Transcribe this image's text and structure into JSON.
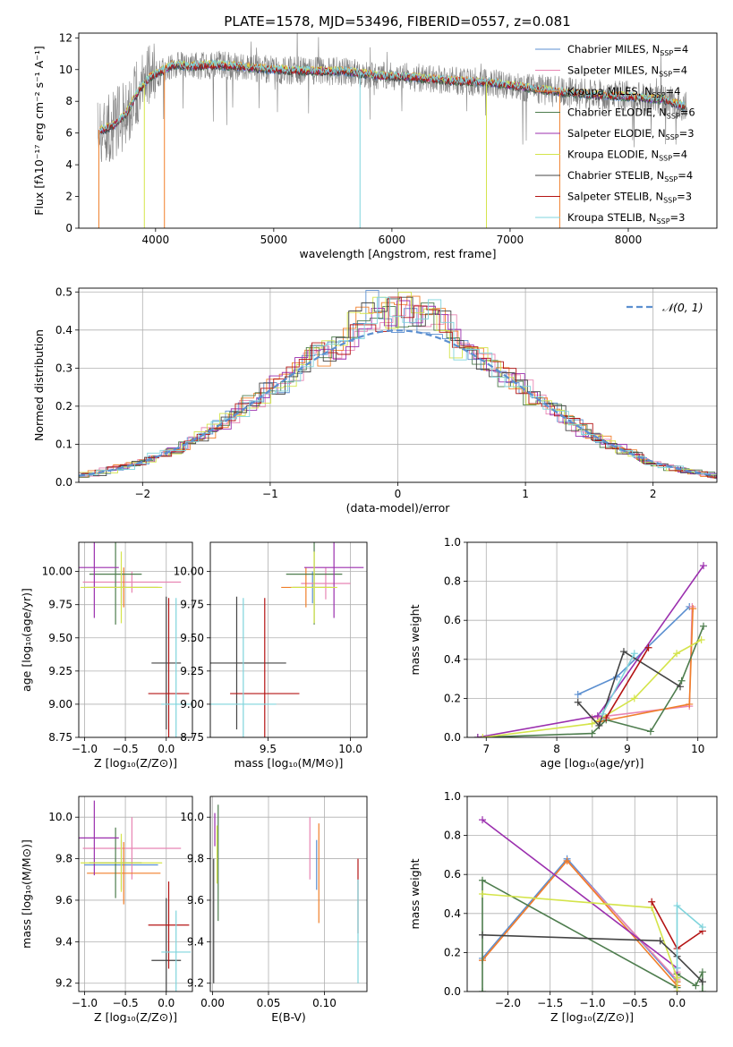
{
  "title": "PLATE=1578, MJD=53496, FIBERID=0557, z=0.081",
  "colors": {
    "Chabrier MILES": "#5b8fd0",
    "Salpeter MILES": "#e885b3",
    "Kroupa MILES": "#f07f2a",
    "Chabrier ELODIE": "#4e7d4e",
    "Salpeter ELODIE": "#9b2fae",
    "Kroupa ELODIE": "#d4e44a",
    "Chabrier STELIB": "#444444",
    "Salpeter STELIB": "#b41414",
    "Kroupa STELIB": "#7fd4dc",
    "data": "#808080"
  },
  "chart_data": [
    {
      "id": "spectrum",
      "type": "line",
      "xlabel": "wavelength [Angstrom, rest frame]",
      "ylabel": "Flux [fλ10⁻¹⁷ erg cm⁻² s⁻¹ A⁻¹]",
      "xlim": [
        3350,
        8750
      ],
      "ylim": [
        0,
        12.3
      ],
      "xticks": [
        "4000",
        "5000",
        "6000",
        "7000",
        "8000"
      ],
      "yticks": [
        "0",
        "2",
        "4",
        "6",
        "8",
        "10",
        "12"
      ],
      "grid": false,
      "legend_position": "top-right",
      "legend": [
        {
          "name": "Chabrier MILES",
          "nssp": "4"
        },
        {
          "name": "Salpeter MILES",
          "nssp": "4"
        },
        {
          "name": "Kroupa MILES",
          "nssp": "4"
        },
        {
          "name": "Chabrier ELODIE",
          "nssp": "6"
        },
        {
          "name": "Salpeter ELODIE",
          "nssp": "3"
        },
        {
          "name": "Kroupa ELODIE",
          "nssp": "4"
        },
        {
          "name": "Chabrier STELIB",
          "nssp": "4"
        },
        {
          "name": "Salpeter STELIB",
          "nssp": "3"
        },
        {
          "name": "Kroupa STELIB",
          "nssp": "3"
        }
      ],
      "continuum_x": [
        3550,
        3650,
        3750,
        3850,
        3950,
        4050,
        4150,
        4300,
        4500,
        4700,
        5000,
        5300,
        5600,
        5900,
        6200,
        6500,
        6800,
        7100,
        7400,
        7700,
        8000,
        8300,
        8500
      ],
      "continuum_y": [
        6.2,
        6.5,
        7.2,
        8.6,
        9.5,
        9.9,
        10.3,
        10.2,
        10.3,
        10.2,
        10.0,
        9.9,
        9.9,
        9.6,
        9.5,
        9.3,
        9.2,
        8.9,
        8.6,
        8.4,
        8.3,
        8.1,
        7.6
      ]
    },
    {
      "id": "residuals",
      "type": "line",
      "xlabel": "(data-model)/error",
      "ylabel": "Normed distribution",
      "xlim": [
        -2.5,
        2.5
      ],
      "ylim": [
        0,
        0.51
      ],
      "xticks": [
        "−2",
        "−1",
        "0",
        "1",
        "2"
      ],
      "yticks": [
        "0.0",
        "0.1",
        "0.2",
        "0.3",
        "0.4",
        "0.5"
      ],
      "grid": true,
      "legend_position": "top-right",
      "legend": [
        {
          "name": "𝒩(0, 1)"
        }
      ]
    },
    {
      "id": "age_vs_Z",
      "type": "scatter",
      "xlabel": "Z [log₁₀(Z/Z⊙)]",
      "ylabel": "age  [log₁₀(age/yr)]",
      "xlim": [
        -1.07,
        0.32
      ],
      "ylim": [
        8.75,
        10.22
      ],
      "xticks": [
        "−1.0",
        "−0.5",
        "0.0"
      ],
      "yticks": [
        "8.75",
        "9.00",
        "9.25",
        "9.50",
        "9.75",
        "10.00"
      ],
      "grid": true,
      "points": [
        {
          "series": "Chabrier MILES",
          "x": -0.55,
          "xerr": 0.45,
          "y": 9.88,
          "yerr": 0.12
        },
        {
          "series": "Salpeter MILES",
          "x": -0.42,
          "xerr": 0.6,
          "y": 9.92,
          "yerr": 0.08
        },
        {
          "series": "Kroupa MILES",
          "x": -0.52,
          "xerr": 0.45,
          "y": 9.88,
          "yerr": 0.15
        },
        {
          "series": "Chabrier ELODIE",
          "x": -0.62,
          "xerr": 0.32,
          "y": 9.98,
          "yerr": 0.38
        },
        {
          "series": "Salpeter ELODIE",
          "x": -0.88,
          "xerr": 0.3,
          "y": 10.03,
          "yerr": 0.38
        },
        {
          "series": "Kroupa ELODIE",
          "x": -0.55,
          "xerr": 0.5,
          "y": 9.88,
          "yerr": 0.27
        },
        {
          "series": "Chabrier STELIB",
          "x": 0.0,
          "xerr": 0.18,
          "y": 9.31,
          "yerr": 0.5
        },
        {
          "series": "Salpeter STELIB",
          "x": 0.03,
          "xerr": 0.25,
          "y": 9.08,
          "yerr": 0.72
        },
        {
          "series": "Kroupa STELIB",
          "x": 0.12,
          "xerr": 0.18,
          "y": 9.0,
          "yerr": 0.8
        }
      ]
    },
    {
      "id": "age_vs_mass",
      "type": "scatter",
      "xlabel": "mass [log₁₀(M/M⊙)]",
      "ylabel": "",
      "xlim": [
        9.15,
        10.1
      ],
      "ylim": [
        8.75,
        10.22
      ],
      "xticks": [
        "9.5",
        "10.0"
      ],
      "yticks": [
        "8.75",
        "9.00",
        "9.25",
        "9.50",
        "9.75",
        "10.00"
      ],
      "grid": true,
      "points": [
        {
          "series": "Chabrier MILES",
          "x": 9.77,
          "xerr": 0.12,
          "y": 9.88,
          "yerr": 0.12
        },
        {
          "series": "Salpeter MILES",
          "x": 9.85,
          "xerr": 0.15,
          "y": 9.91,
          "yerr": 0.12
        },
        {
          "series": "Kroupa MILES",
          "x": 9.73,
          "xerr": 0.15,
          "y": 9.88,
          "yerr": 0.15
        },
        {
          "series": "Chabrier ELODIE",
          "x": 9.78,
          "xerr": 0.17,
          "y": 9.98,
          "yerr": 0.38
        },
        {
          "series": "Salpeter ELODIE",
          "x": 9.9,
          "xerr": 0.18,
          "y": 10.03,
          "yerr": 0.38
        },
        {
          "series": "Kroupa ELODIE",
          "x": 9.78,
          "xerr": 0.14,
          "y": 9.88,
          "yerr": 0.27
        },
        {
          "series": "Chabrier STELIB",
          "x": 9.31,
          "xerr": 0.3,
          "y": 9.31,
          "yerr": 0.5
        },
        {
          "series": "Salpeter STELIB",
          "x": 9.48,
          "xerr": 0.21,
          "y": 9.08,
          "yerr": 0.72
        },
        {
          "series": "Kroupa STELIB",
          "x": 9.35,
          "xerr": 0.2,
          "y": 9.0,
          "yerr": 0.8
        }
      ]
    },
    {
      "id": "weight_vs_age",
      "type": "line",
      "xlabel": "age  [log₁₀(age/yr)]",
      "ylabel": "mass weight",
      "xlim": [
        6.73,
        10.27
      ],
      "ylim": [
        0,
        1.0
      ],
      "xticks": [
        "7",
        "8",
        "9",
        "10"
      ],
      "yticks": [
        "0.0",
        "0.2",
        "0.4",
        "0.6",
        "0.8",
        "1.0"
      ],
      "grid": true,
      "series": [
        {
          "name": "Chabrier MILES",
          "x": [
            8.3,
            8.85,
            9.88
          ],
          "y": [
            0.22,
            0.31,
            0.67
          ]
        },
        {
          "name": "Salpeter MILES",
          "x": [
            8.5,
            9.88,
            9.92
          ],
          "y": [
            0.1,
            0.16,
            0.67
          ]
        },
        {
          "name": "Kroupa MILES",
          "x": [
            8.6,
            9.88,
            9.93
          ],
          "y": [
            0.08,
            0.17,
            0.66
          ]
        },
        {
          "name": "Chabrier ELODIE",
          "x": [
            6.88,
            8.5,
            8.7,
            9.33,
            9.77,
            10.08
          ],
          "y": [
            0.0,
            0.02,
            0.09,
            0.03,
            0.29,
            0.57
          ]
        },
        {
          "name": "Salpeter ELODIE",
          "x": [
            6.88,
            8.58,
            10.08
          ],
          "y": [
            0.0,
            0.11,
            0.88
          ]
        },
        {
          "name": "Kroupa ELODIE",
          "x": [
            6.95,
            8.5,
            9.1,
            9.7,
            10.05
          ],
          "y": [
            0.0,
            0.07,
            0.2,
            0.43,
            0.5
          ]
        },
        {
          "name": "Chabrier STELIB",
          "x": [
            8.3,
            8.6,
            8.95,
            9.75
          ],
          "y": [
            0.18,
            0.06,
            0.44,
            0.26
          ]
        },
        {
          "name": "Salpeter STELIB",
          "x": [
            8.7,
            9.3
          ],
          "y": [
            0.1,
            0.46
          ]
        },
        {
          "name": "Kroupa STELIB",
          "x": [
            8.65,
            9.1
          ],
          "y": [
            0.12,
            0.43
          ]
        }
      ]
    },
    {
      "id": "mass_vs_Z",
      "type": "scatter",
      "xlabel": "Z [log₁₀(Z/Z⊙)]",
      "ylabel": "mass [log₁₀(M/M⊙)]",
      "xlim": [
        -1.07,
        0.32
      ],
      "ylim": [
        9.16,
        10.1
      ],
      "xticks": [
        "−1.0",
        "−0.5",
        "0.0"
      ],
      "yticks": [
        "9.2",
        "9.4",
        "9.6",
        "9.8",
        "10.0"
      ],
      "grid": true,
      "points": [
        {
          "series": "Chabrier MILES",
          "x": -0.55,
          "xerr": 0.45,
          "y": 9.77,
          "yerr": 0.12
        },
        {
          "series": "Salpeter MILES",
          "x": -0.42,
          "xerr": 0.6,
          "y": 9.85,
          "yerr": 0.15
        },
        {
          "series": "Kroupa MILES",
          "x": -0.52,
          "xerr": 0.45,
          "y": 9.73,
          "yerr": 0.15
        },
        {
          "series": "Chabrier ELODIE",
          "x": -0.62,
          "xerr": 0.32,
          "y": 9.78,
          "yerr": 0.17
        },
        {
          "series": "Salpeter ELODIE",
          "x": -0.88,
          "xerr": 0.3,
          "y": 9.9,
          "yerr": 0.18
        },
        {
          "series": "Kroupa ELODIE",
          "x": -0.55,
          "xerr": 0.5,
          "y": 9.78,
          "yerr": 0.14
        },
        {
          "series": "Chabrier STELIB",
          "x": 0.0,
          "xerr": 0.18,
          "y": 9.31,
          "yerr": 0.3
        },
        {
          "series": "Salpeter STELIB",
          "x": 0.03,
          "xerr": 0.25,
          "y": 9.48,
          "yerr": 0.21
        },
        {
          "series": "Kroupa STELIB",
          "x": 0.12,
          "xerr": 0.18,
          "y": 9.35,
          "yerr": 0.2
        }
      ]
    },
    {
      "id": "mass_vs_ebv",
      "type": "scatter",
      "xlabel": "E(B-V)",
      "ylabel": "",
      "xlim": [
        -0.002,
        0.138
      ],
      "ylim": [
        9.16,
        10.1
      ],
      "xticks": [
        "0.00",
        "0.05",
        "0.10"
      ],
      "yticks": [
        "9.2",
        "9.4",
        "9.6",
        "9.8",
        "10.0"
      ],
      "grid": true,
      "points": [
        {
          "series": "Chabrier MILES",
          "x": 0.093,
          "xerr": 0,
          "y": 9.77,
          "yerr": 0.12
        },
        {
          "series": "Salpeter MILES",
          "x": 0.087,
          "xerr": 0,
          "y": 9.85,
          "yerr": 0.15
        },
        {
          "series": "Kroupa MILES",
          "x": 0.095,
          "xerr": 0,
          "y": 9.73,
          "yerr": 0.24
        },
        {
          "series": "Chabrier ELODIE",
          "x": 0.005,
          "xerr": 0,
          "y": 9.78,
          "yerr": 0.28
        },
        {
          "series": "Salpeter ELODIE",
          "x": 0.002,
          "xerr": 0,
          "y": 9.94,
          "yerr": 0.08
        },
        {
          "series": "Kroupa ELODIE",
          "x": 0.004,
          "xerr": 0,
          "y": 9.82,
          "yerr": 0.14
        },
        {
          "series": "Chabrier STELIB",
          "x": 0.001,
          "xerr": 0,
          "y": 9.5,
          "yerr": 0.3
        },
        {
          "series": "Salpeter STELIB",
          "x": 0.13,
          "xerr": 0,
          "y": 9.62,
          "yerr": 0.18
        },
        {
          "series": "Kroupa STELIB",
          "x": 0.13,
          "xerr": 0,
          "y": 9.45,
          "yerr": 0.25
        }
      ]
    },
    {
      "id": "weight_vs_Z",
      "type": "line",
      "xlabel": "Z [log₁₀(Z/Z⊙)]",
      "ylabel": "mass weight",
      "xlim": [
        -2.48,
        0.47
      ],
      "ylim": [
        0,
        1.0
      ],
      "xticks": [
        "−2.0",
        "−1.5",
        "−1.0",
        "−0.5",
        "0.0"
      ],
      "yticks": [
        "0.0",
        "0.2",
        "0.4",
        "0.6",
        "0.8",
        "1.0"
      ],
      "grid": true,
      "series": [
        {
          "name": "Chabrier MILES",
          "x": [
            -2.3,
            -1.3,
            0.0,
            0.0
          ],
          "y": [
            0.17,
            0.68,
            0.05,
            0.07
          ]
        },
        {
          "name": "Salpeter MILES",
          "x": [
            -2.3,
            -1.3,
            0.0,
            0.0
          ],
          "y": [
            0.16,
            0.67,
            0.06,
            0.1
          ]
        },
        {
          "name": "Kroupa MILES",
          "x": [
            -2.3,
            -1.3,
            0.0,
            0.0
          ],
          "y": [
            0.16,
            0.67,
            0.03,
            0.05
          ]
        },
        {
          "name": "Chabrier ELODIE",
          "x": [
            -2.3,
            -2.3,
            0.0,
            0.0,
            0.22,
            0.3,
            0.3
          ],
          "y": [
            0.0,
            0.57,
            0.02,
            0.09,
            0.03,
            0.1,
            0.0
          ]
        },
        {
          "name": "Salpeter ELODIE",
          "x": [
            -2.3,
            0.0,
            0.0
          ],
          "y": [
            0.88,
            0.12,
            0.0
          ]
        },
        {
          "name": "Kroupa ELODIE",
          "x": [
            -2.3,
            -0.3,
            0.0,
            0.0
          ],
          "y": [
            0.5,
            0.43,
            0.07,
            0.0
          ]
        },
        {
          "name": "Chabrier STELIB",
          "x": [
            -2.3,
            -0.2,
            0.0,
            0.3
          ],
          "y": [
            0.29,
            0.26,
            0.18,
            0.05
          ]
        },
        {
          "name": "Salpeter STELIB",
          "x": [
            -0.3,
            0.0,
            0.3
          ],
          "y": [
            0.46,
            0.22,
            0.31
          ]
        },
        {
          "name": "Kroupa STELIB",
          "x": [
            0.0,
            0.0,
            0.3
          ],
          "y": [
            0.12,
            0.44,
            0.33
          ]
        }
      ]
    }
  ]
}
